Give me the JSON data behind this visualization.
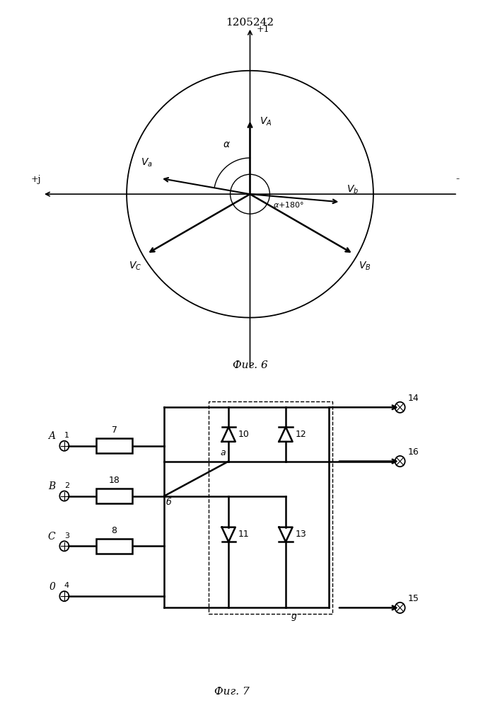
{
  "title": "1205242",
  "fig6_label": "Фиг. 6",
  "fig7_label": "Фиг. 7",
  "bg_color": "#ffffff",
  "line_color": "#000000"
}
